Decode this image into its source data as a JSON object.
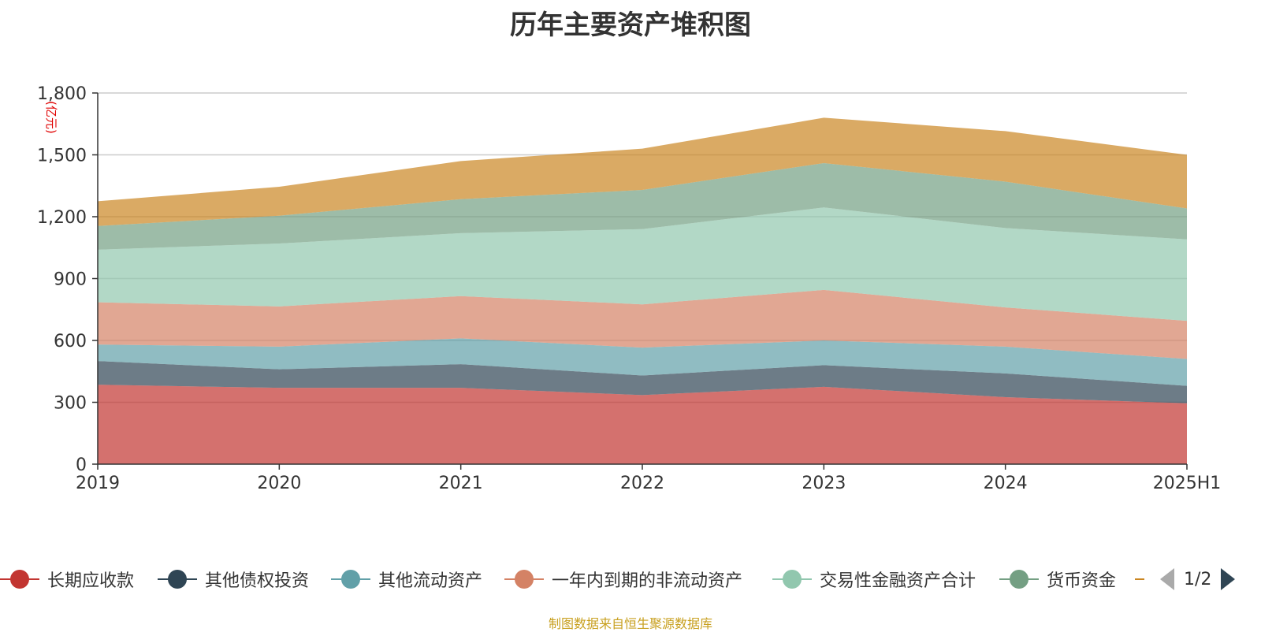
{
  "chart_data": {
    "type": "area",
    "title": "历年主要资产堆积图",
    "unit_label": "(亿元)",
    "categories": [
      "2019",
      "2020",
      "2021",
      "2022",
      "2023",
      "2024",
      "2025H1"
    ],
    "ylim": [
      0,
      1800
    ],
    "yticks": [
      0,
      300,
      600,
      900,
      1200,
      1500,
      1800
    ],
    "ytick_labels": [
      "0",
      "300",
      "600",
      "900",
      "1,200",
      "1,500",
      "1,800"
    ],
    "stacked": true,
    "grid": true,
    "legend_position": "bottom",
    "series": [
      {
        "name": "长期应收款",
        "color": "#c23531",
        "values": [
          385,
          370,
          370,
          335,
          375,
          325,
          295
        ]
      },
      {
        "name": "其他债权投资",
        "color": "#2f4554",
        "values": [
          115,
          90,
          115,
          95,
          105,
          115,
          85
        ]
      },
      {
        "name": "其他流动资产",
        "color": "#61a0a8",
        "values": [
          80,
          110,
          125,
          135,
          120,
          130,
          130
        ]
      },
      {
        "name": "一年内到期的非流动资产",
        "color": "#d48265",
        "values": [
          205,
          195,
          205,
          210,
          245,
          190,
          185
        ]
      },
      {
        "name": "交易性金融资产合计",
        "color": "#91c7ae",
        "values": [
          255,
          305,
          305,
          365,
          400,
          385,
          395
        ]
      },
      {
        "name": "货币资金",
        "color": "#749f83",
        "values": [
          115,
          135,
          165,
          190,
          215,
          225,
          150
        ]
      },
      {
        "name": "",
        "color": "#ca8622",
        "values": [
          120,
          140,
          185,
          200,
          220,
          245,
          260
        ]
      }
    ]
  },
  "legend": {
    "page_text": "1/2"
  },
  "source_note": "制图数据来自恒生聚源数据库"
}
